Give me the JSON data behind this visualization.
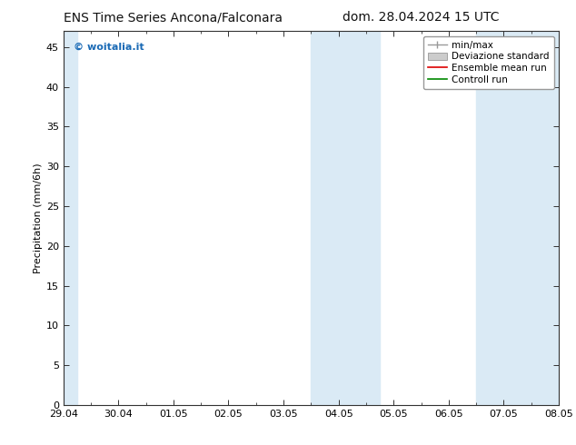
{
  "title_left": "ENS Time Series Ancona/Falconara",
  "title_right": "dom. 28.04.2024 15 UTC",
  "ylabel": "Precipitation (mm/6h)",
  "watermark": "© woitalia.it",
  "watermark_color": "#1a6ab5",
  "background_color": "#ffffff",
  "plot_bg_color": "#ffffff",
  "ylim": [
    0,
    47
  ],
  "yticks": [
    0,
    5,
    10,
    15,
    20,
    25,
    30,
    35,
    40,
    45
  ],
  "xtick_labels": [
    "29.04",
    "30.04",
    "01.05",
    "02.05",
    "03.05",
    "04.05",
    "05.05",
    "06.05",
    "07.05",
    "08.05"
  ],
  "xlim": [
    0,
    9
  ],
  "shaded_regions": [
    {
      "x_start": 0.0,
      "x_end": 0.25,
      "color": "#daeaf5"
    },
    {
      "x_start": 4.5,
      "x_end": 5.75,
      "color": "#daeaf5"
    },
    {
      "x_start": 7.5,
      "x_end": 9.0,
      "color": "#daeaf5"
    }
  ],
  "legend_entries": [
    {
      "label": "min/max",
      "color": "#999999",
      "lw": 1.0,
      "style": "errorbar"
    },
    {
      "label": "Deviazione standard",
      "color": "#cccccc",
      "lw": 6,
      "style": "band"
    },
    {
      "label": "Ensemble mean run",
      "color": "#dd0000",
      "lw": 1.2,
      "style": "line"
    },
    {
      "label": "Controll run",
      "color": "#008800",
      "lw": 1.2,
      "style": "line"
    }
  ],
  "font_size_title": 10,
  "font_size_tick": 8,
  "font_size_legend": 7.5,
  "font_size_ylabel": 8,
  "font_size_watermark": 8,
  "spine_color": "#333333"
}
